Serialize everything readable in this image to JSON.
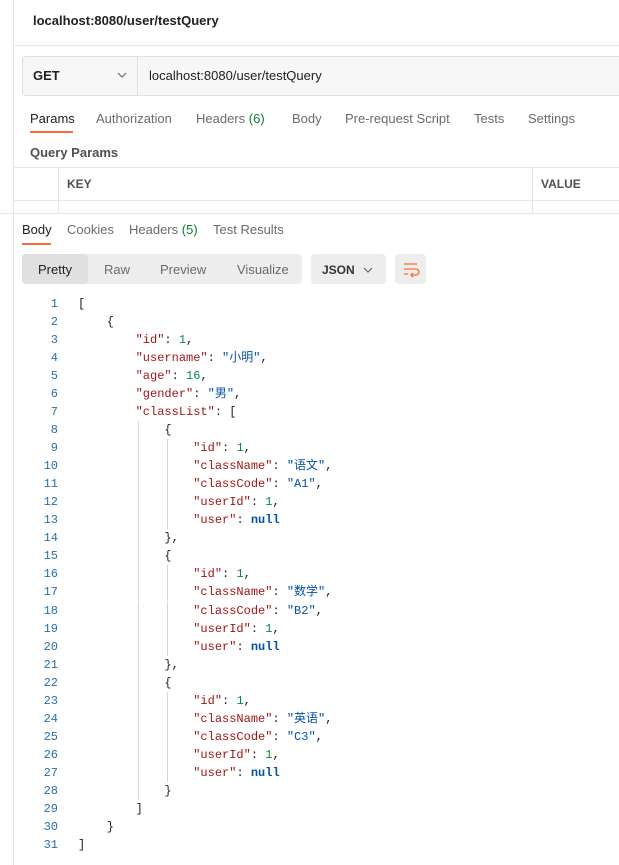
{
  "request": {
    "tab_title": "localhost:8080/user/testQuery",
    "method": "GET",
    "url": "localhost:8080/user/testQuery"
  },
  "request_tabs": [
    {
      "label": "Params"
    },
    {
      "label": "Authorization"
    },
    {
      "label": "Headers",
      "badge": "(6)"
    },
    {
      "label": "Body"
    },
    {
      "label": "Pre-request Script"
    },
    {
      "label": "Tests"
    },
    {
      "label": "Settings"
    }
  ],
  "query_params": {
    "title": "Query Params",
    "columns": [
      "KEY",
      "VALUE"
    ]
  },
  "response_tabs": [
    {
      "label": "Body"
    },
    {
      "label": "Cookies"
    },
    {
      "label": "Headers",
      "badge": "(5)"
    },
    {
      "label": "Test Results"
    }
  ],
  "view_modes": [
    "Pretty",
    "Raw",
    "Preview",
    "Visualize"
  ],
  "format": "JSON",
  "code": {
    "line_numbers": [
      1,
      2,
      3,
      4,
      5,
      6,
      7,
      8,
      9,
      10,
      11,
      12,
      13,
      14,
      15,
      16,
      17,
      18,
      19,
      20,
      21,
      22,
      23,
      24,
      25,
      26,
      27,
      28,
      29,
      30,
      31
    ],
    "lines": [
      "[",
      "    {",
      "        \"id\": 1,",
      "        \"username\": \"小明\",",
      "        \"age\": 16,",
      "        \"gender\": \"男\",",
      "        \"classList\": [",
      "            {",
      "                \"id\": 1,",
      "                \"className\": \"语文\",",
      "                \"classCode\": \"A1\",",
      "                \"userId\": 1,",
      "                \"user\": null",
      "            },",
      "            {",
      "                \"id\": 1,",
      "                \"className\": \"数学\",",
      "                \"classCode\": \"B2\",",
      "                \"userId\": 1,",
      "                \"user\": null",
      "            },",
      "            {",
      "                \"id\": 1,",
      "                \"className\": \"英语\",",
      "                \"classCode\": \"C3\",",
      "                \"userId\": 1,",
      "                \"user\": null",
      "            }",
      "        ]",
      "    }",
      "]"
    ]
  }
}
